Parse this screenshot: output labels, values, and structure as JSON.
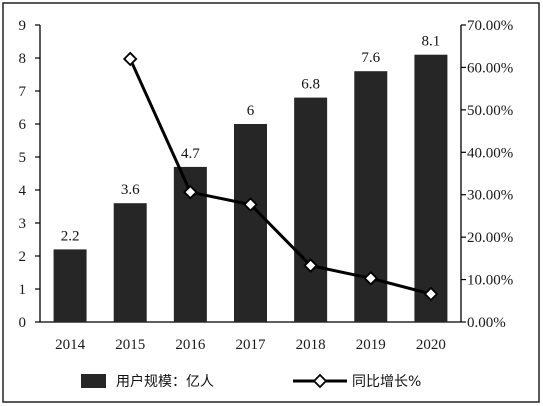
{
  "chart_data": {
    "type": "bar",
    "categories": [
      "2014",
      "2015",
      "2016",
      "2017",
      "2018",
      "2019",
      "2020"
    ],
    "series": [
      {
        "name": "用户规模：亿人",
        "kind": "bar",
        "axis": "left",
        "values": [
          2.2,
          3.6,
          4.7,
          6,
          6.8,
          7.6,
          8.1
        ],
        "labels": [
          "2.2",
          "3.6",
          "4.7",
          "6",
          "6.8",
          "7.6",
          "8.1"
        ],
        "color": "#262626"
      },
      {
        "name": "同比增长%",
        "kind": "line",
        "axis": "right",
        "marker": "diamond",
        "values": [
          null,
          62,
          30.6,
          27.7,
          13.3,
          10.3,
          6.6
        ],
        "color": "#000000"
      }
    ],
    "y_left": {
      "ylim": [
        0,
        9
      ],
      "ticks": [
        "0",
        "1",
        "2",
        "3",
        "4",
        "5",
        "6",
        "7",
        "8",
        "9"
      ]
    },
    "y_right": {
      "ylim": [
        0,
        70
      ],
      "ticks": [
        "0.00%",
        "10.00%",
        "20.00%",
        "30.00%",
        "40.00%",
        "50.00%",
        "60.00%",
        "70.00%"
      ]
    },
    "grid": false,
    "legend": {
      "position": "bottom",
      "items": [
        "用户规模：亿人",
        "同比增长%"
      ]
    }
  }
}
